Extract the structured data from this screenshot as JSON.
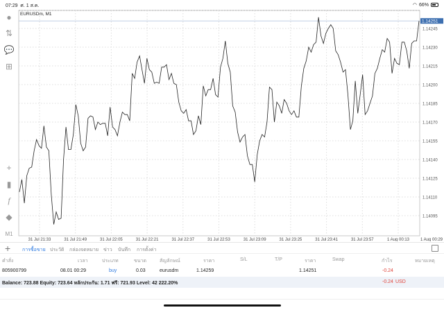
{
  "status_bar": {
    "time": "07:29",
    "date": "ศ. 1 ส.ค.",
    "battery": "66%",
    "battery_level": 0.66
  },
  "chart": {
    "symbol_label": "EURUSDm, M1",
    "timeframe": "M1",
    "current_price": "1.14251",
    "accent_color": "#3d6fb0"
  },
  "chart_data": {
    "type": "line",
    "title": "EURUSDm, M1",
    "x_ticks": [
      "31 Jul 21:33",
      "31 Jul 21:49",
      "31 Jul 22:05",
      "31 Jul 22:21",
      "31 Jul 22:37",
      "31 Jul 22:53",
      "31 Jul 23:09",
      "31 Jul 23:25",
      "31 Jul 23:41",
      "31 Jul 23:57",
      "1 Aug 00:13",
      "1 Aug 00:29"
    ],
    "y_ticks": [
      "1.14245",
      "1.14230",
      "1.14215",
      "1.14200",
      "1.14185",
      "1.14170",
      "1.14155",
      "1.14140",
      "1.14125",
      "1.14110",
      "1.14095"
    ],
    "ylim": [
      1.14086,
      1.14262
    ],
    "grid": true,
    "values": [
      1.14114,
      1.14124,
      1.14105,
      1.14127,
      1.14133,
      1.14134,
      1.14147,
      1.14156,
      1.14151,
      1.14149,
      1.14167,
      1.1415,
      1.14147,
      1.14112,
      1.14088,
      1.14098,
      1.14092,
      1.14093,
      1.1414,
      1.14166,
      1.14148,
      1.14148,
      1.1416,
      1.14184,
      1.14175,
      1.14153,
      1.14147,
      1.1415,
      1.14173,
      1.14175,
      1.14174,
      1.14164,
      1.1417,
      1.14168,
      1.14169,
      1.14169,
      1.14159,
      1.14182,
      1.14166,
      1.14164,
      1.14159,
      1.1417,
      1.14178,
      1.14176,
      1.14176,
      1.14171,
      1.14209,
      1.14205,
      1.14218,
      1.14223,
      1.14212,
      1.14201,
      1.14221,
      1.14212,
      1.1421,
      1.14201,
      1.14202,
      1.14201,
      1.14214,
      1.14214,
      1.14216,
      1.14204,
      1.14209,
      1.14201,
      1.142,
      1.14186,
      1.14179,
      1.14177,
      1.1418,
      1.14171,
      1.14171,
      1.1416,
      1.14163,
      1.14175,
      1.14168,
      1.14199,
      1.14191,
      1.14196,
      1.14196,
      1.14205,
      1.14192,
      1.1419,
      1.14214,
      1.14221,
      1.14235,
      1.14217,
      1.1421,
      1.14183,
      1.14178,
      1.14162,
      1.14154,
      1.14158,
      1.1416,
      1.14143,
      1.14136,
      1.14136,
      1.14122,
      1.14144,
      1.14155,
      1.1416,
      1.14158,
      1.1417,
      1.14198,
      1.14196,
      1.1417,
      1.14186,
      1.14183,
      1.14177,
      1.14188,
      1.14185,
      1.14179,
      1.14176,
      1.14179,
      1.14174,
      1.14174,
      1.14199,
      1.14213,
      1.14219,
      1.1423,
      1.14226,
      1.14232,
      1.14234,
      1.14254,
      1.14239,
      1.14233,
      1.14241,
      1.14245,
      1.14248,
      1.14245,
      1.14227,
      1.14224,
      1.14218,
      1.1421,
      1.14212,
      1.14192,
      1.14164,
      1.14171,
      1.14203,
      1.14177,
      1.14192,
      1.14208,
      1.14176,
      1.14179,
      1.14185,
      1.14191,
      1.14209,
      1.14213,
      1.14221,
      1.14228,
      1.14226,
      1.14237,
      1.14234,
      1.14209,
      1.14221,
      1.14217,
      1.14216,
      1.14234,
      1.14234,
      1.14227,
      1.14213,
      1.14233,
      1.14235,
      1.14235,
      1.14251
    ]
  },
  "bottom": {
    "tabs": [
      "การซื้อขาย",
      "ประวัติ",
      "กล่องจดหมาย",
      "ข่าว",
      "บันทึก",
      "การตั้งค่า"
    ],
    "headers": [
      "คำสั่ง",
      "เวลา",
      "ประเภท",
      "ขนาด",
      "สัญลักษณ์",
      "ราคา",
      "S/L",
      "T/P",
      "ราคา",
      "Swap",
      "กำไร",
      "หมายเหตุ"
    ],
    "position": {
      "order": "805900799",
      "time": "08.01 00:29",
      "type": "buy",
      "size": "0.03",
      "symbol": "eurusdm",
      "open_price": "1.14259",
      "sl": "",
      "tp": "",
      "price": "1.14251",
      "swap": "",
      "profit": "-0.24",
      "note": ""
    },
    "balance_line": "Balance: 723.88 Equity: 723.64 หลักประกัน: 1.71 ฟรี: 721.93 Level: 42 222.20%",
    "total_profit": "-0.24",
    "currency": "USD"
  }
}
